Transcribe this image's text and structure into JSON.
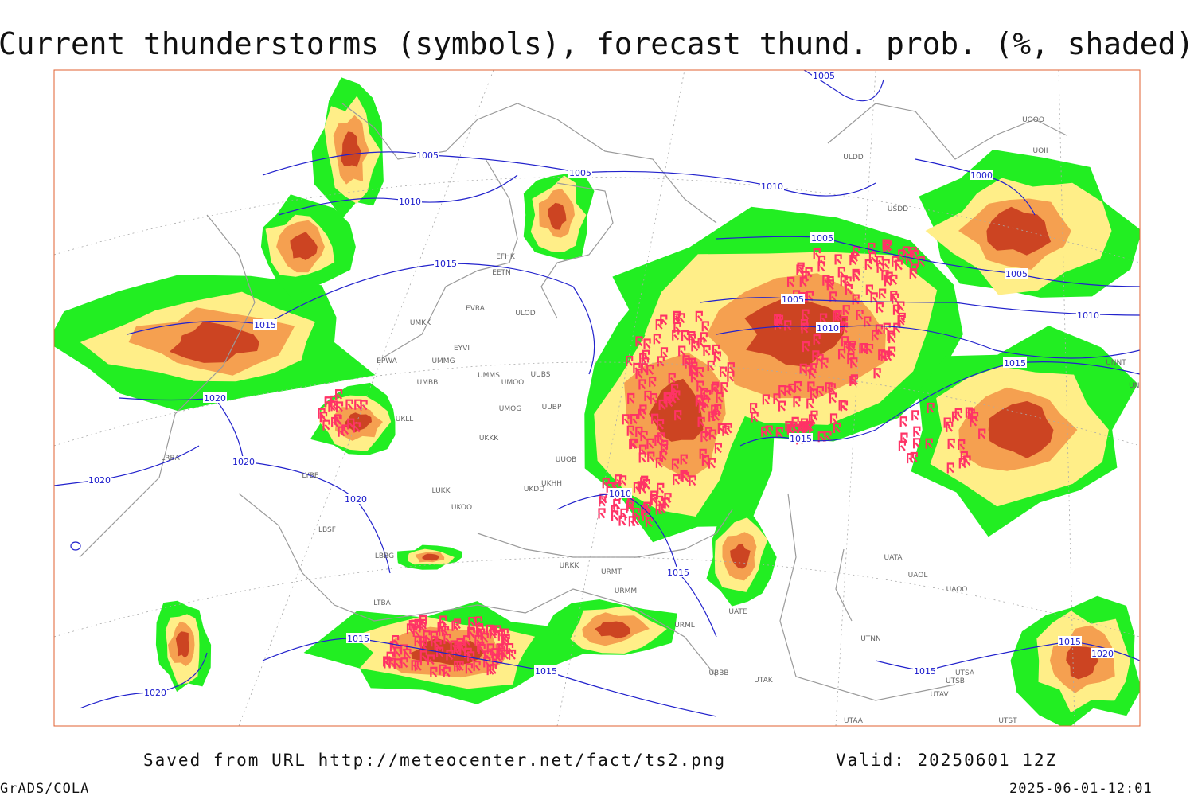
{
  "header": {
    "title": "Current thunderstorms (symbols), forecast thund. prob. (%, shaded)"
  },
  "map": {
    "isobar_labels": [
      "1005",
      "1010",
      "1005",
      "1010",
      "1005",
      "1000",
      "1005",
      "1005",
      "1005",
      "1010",
      "1010",
      "1015",
      "1015",
      "1015",
      "1020",
      "1020",
      "1020",
      "1020",
      "1015",
      "1010",
      "1015",
      "1015",
      "1015",
      "1015",
      "1015",
      "1020",
      "1020"
    ],
    "stations": [
      "EFHK",
      "EETN",
      "EVRA",
      "ULOD",
      "UMKK",
      "EYVI",
      "UMMG",
      "EPWA",
      "UMMS",
      "UMOO",
      "UUBS",
      "UMBB",
      "UMOG",
      "UUBP",
      "UKKK",
      "UUOB",
      "UKHH",
      "UKDD",
      "UKOO",
      "LUKK",
      "LYBE",
      "LBSF",
      "LBBG",
      "LRBA",
      "UKLL",
      "ULDD",
      "USDD",
      "UATA",
      "UAOL",
      "UAOO",
      "UTNN",
      "UTAK",
      "UBBB",
      "UATE",
      "URML",
      "URMT",
      "URKK",
      "URMM",
      "LTBA",
      "UTSA",
      "UTSB",
      "UTAV",
      "UTST",
      "UTAA",
      "UNNT",
      "UNBB",
      "UOOO",
      "UOII"
    ]
  },
  "footer": {
    "source": "Saved from URL http://meteocenter.net/fact/ts2.png",
    "valid": "Valid: 20250601 12Z",
    "software": "GrADS/COLA",
    "timestamp": "2025-06-01-12:01"
  }
}
